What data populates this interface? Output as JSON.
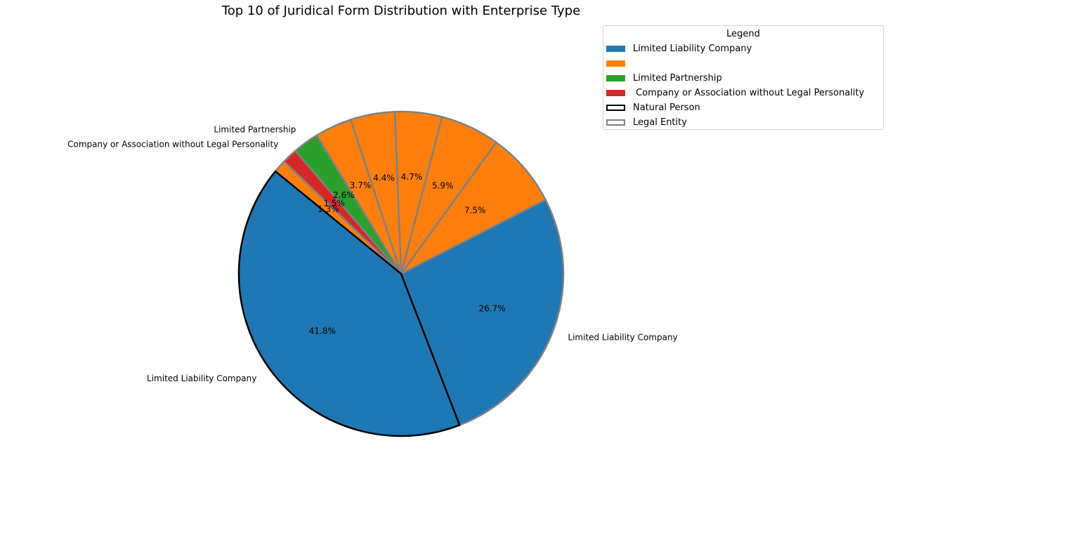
{
  "chart_data": {
    "type": "pie",
    "title": "Top 10 of Juridical Form Distribution with Enterprise Type",
    "slices": [
      {
        "label": "Limited Liability Company",
        "value": 41.8,
        "pct_label": "41.8%",
        "color": "#1f77b4",
        "edge": "#000000"
      },
      {
        "label": "Limited Liability Company",
        "value": 26.7,
        "pct_label": "26.7%",
        "color": "#1f77b4",
        "edge": "#808080"
      },
      {
        "label": "",
        "value": 7.5,
        "pct_label": "7.5%",
        "color": "#ff7f0e",
        "edge": "#808080"
      },
      {
        "label": "",
        "value": 5.9,
        "pct_label": "5.9%",
        "color": "#ff7f0e",
        "edge": "#808080"
      },
      {
        "label": "",
        "value": 4.7,
        "pct_label": "4.7%",
        "color": "#ff7f0e",
        "edge": "#808080"
      },
      {
        "label": "",
        "value": 4.4,
        "pct_label": "4.4%",
        "color": "#ff7f0e",
        "edge": "#808080"
      },
      {
        "label": "",
        "value": 3.7,
        "pct_label": "3.7%",
        "color": "#ff7f0e",
        "edge": "#808080"
      },
      {
        "label": "Limited Partnership",
        "value": 2.6,
        "pct_label": "2.6%",
        "color": "#2ca02c",
        "edge": "#808080"
      },
      {
        "label": "Company or Association without Legal Personality",
        "value": 1.5,
        "pct_label": "1.5%",
        "color": "#d62728",
        "edge": "#808080"
      },
      {
        "label": "",
        "value": 1.3,
        "pct_label": "1.3%",
        "color": "#ff7f0e",
        "edge": "#808080"
      }
    ],
    "legend": {
      "title": "Legend",
      "placement": "upper-right of pie",
      "entries": [
        {
          "label": "Limited Liability Company",
          "fill": "#1f77b4",
          "edge": "#1f77b4"
        },
        {
          "label": "",
          "fill": "#ff7f0e",
          "edge": "#ff7f0e"
        },
        {
          "label": "Limited Partnership",
          "fill": "#2ca02c",
          "edge": "#2ca02c"
        },
        {
          "label": " Company or Association without Legal Personality",
          "fill": "#d62728",
          "edge": "#d62728"
        },
        {
          "label": "Natural Person",
          "fill": "#ffffff",
          "edge": "#000000"
        },
        {
          "label": "Legal Entity",
          "fill": "#ffffff",
          "edge": "#808080"
        }
      ]
    }
  }
}
